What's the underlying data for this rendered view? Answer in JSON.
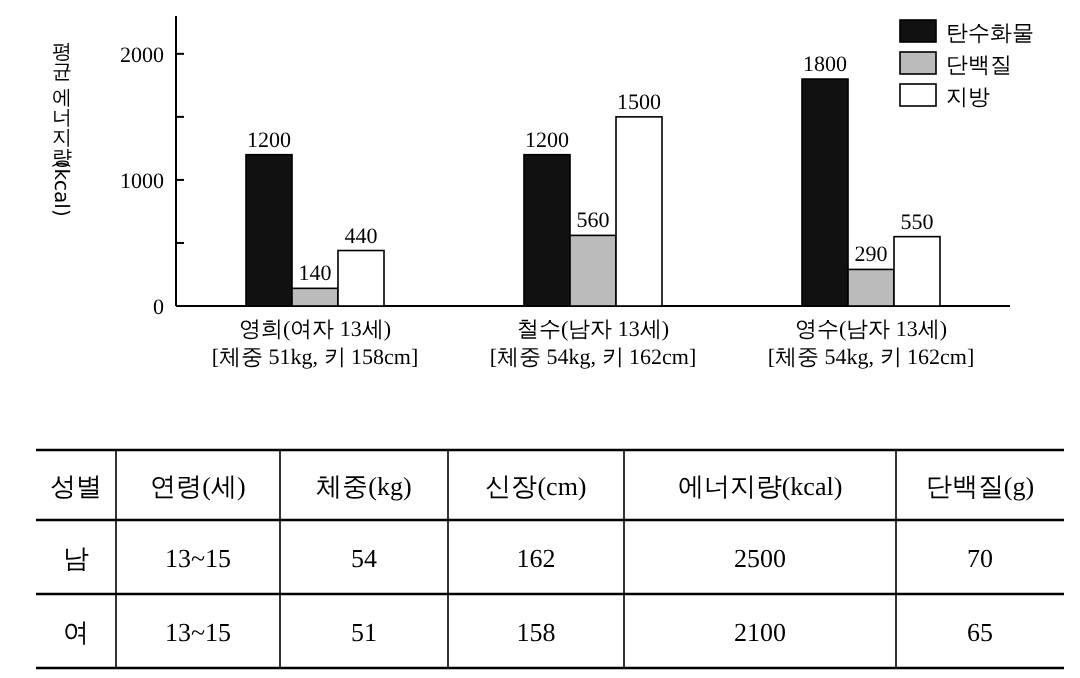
{
  "chart_data": [
    {
      "type": "bar",
      "ylabel": "평균 에너지량 (kcal)",
      "categories": [
        "영희(여자 13세)\n[체중 51kg, 키 158cm]",
        "철수(남자 13세)\n[체중 54kg, 키 162cm]",
        "영수(남자 13세)\n[체중 54kg, 키 162cm]"
      ],
      "series": [
        {
          "name": "탄수화물",
          "color": "#111111",
          "values": [
            1200,
            1200,
            1800
          ]
        },
        {
          "name": "단백질",
          "color": "#bbbbbb",
          "values": [
            140,
            560,
            290
          ]
        },
        {
          "name": "지방",
          "color": "#ffffff",
          "values": [
            440,
            1500,
            550
          ]
        }
      ],
      "ylim": [
        0,
        2300
      ],
      "yticks": [
        0,
        {
          "value": 500,
          "label": null
        },
        1000,
        {
          "value": 1500,
          "label": null
        },
        2000
      ],
      "data_labels": true,
      "legend": "top right"
    },
    {
      "type": "other",
      "annotations": [
        "성별",
        "연령(세)",
        "체중(kg)",
        "신장(cm)",
        "에너지량(kcal)",
        "단백질(g)",
        "남",
        "13~15",
        "54",
        "162",
        "2500",
        "70",
        "여",
        "13~15",
        "51",
        "158",
        "2100",
        "65"
      ]
    }
  ]
}
